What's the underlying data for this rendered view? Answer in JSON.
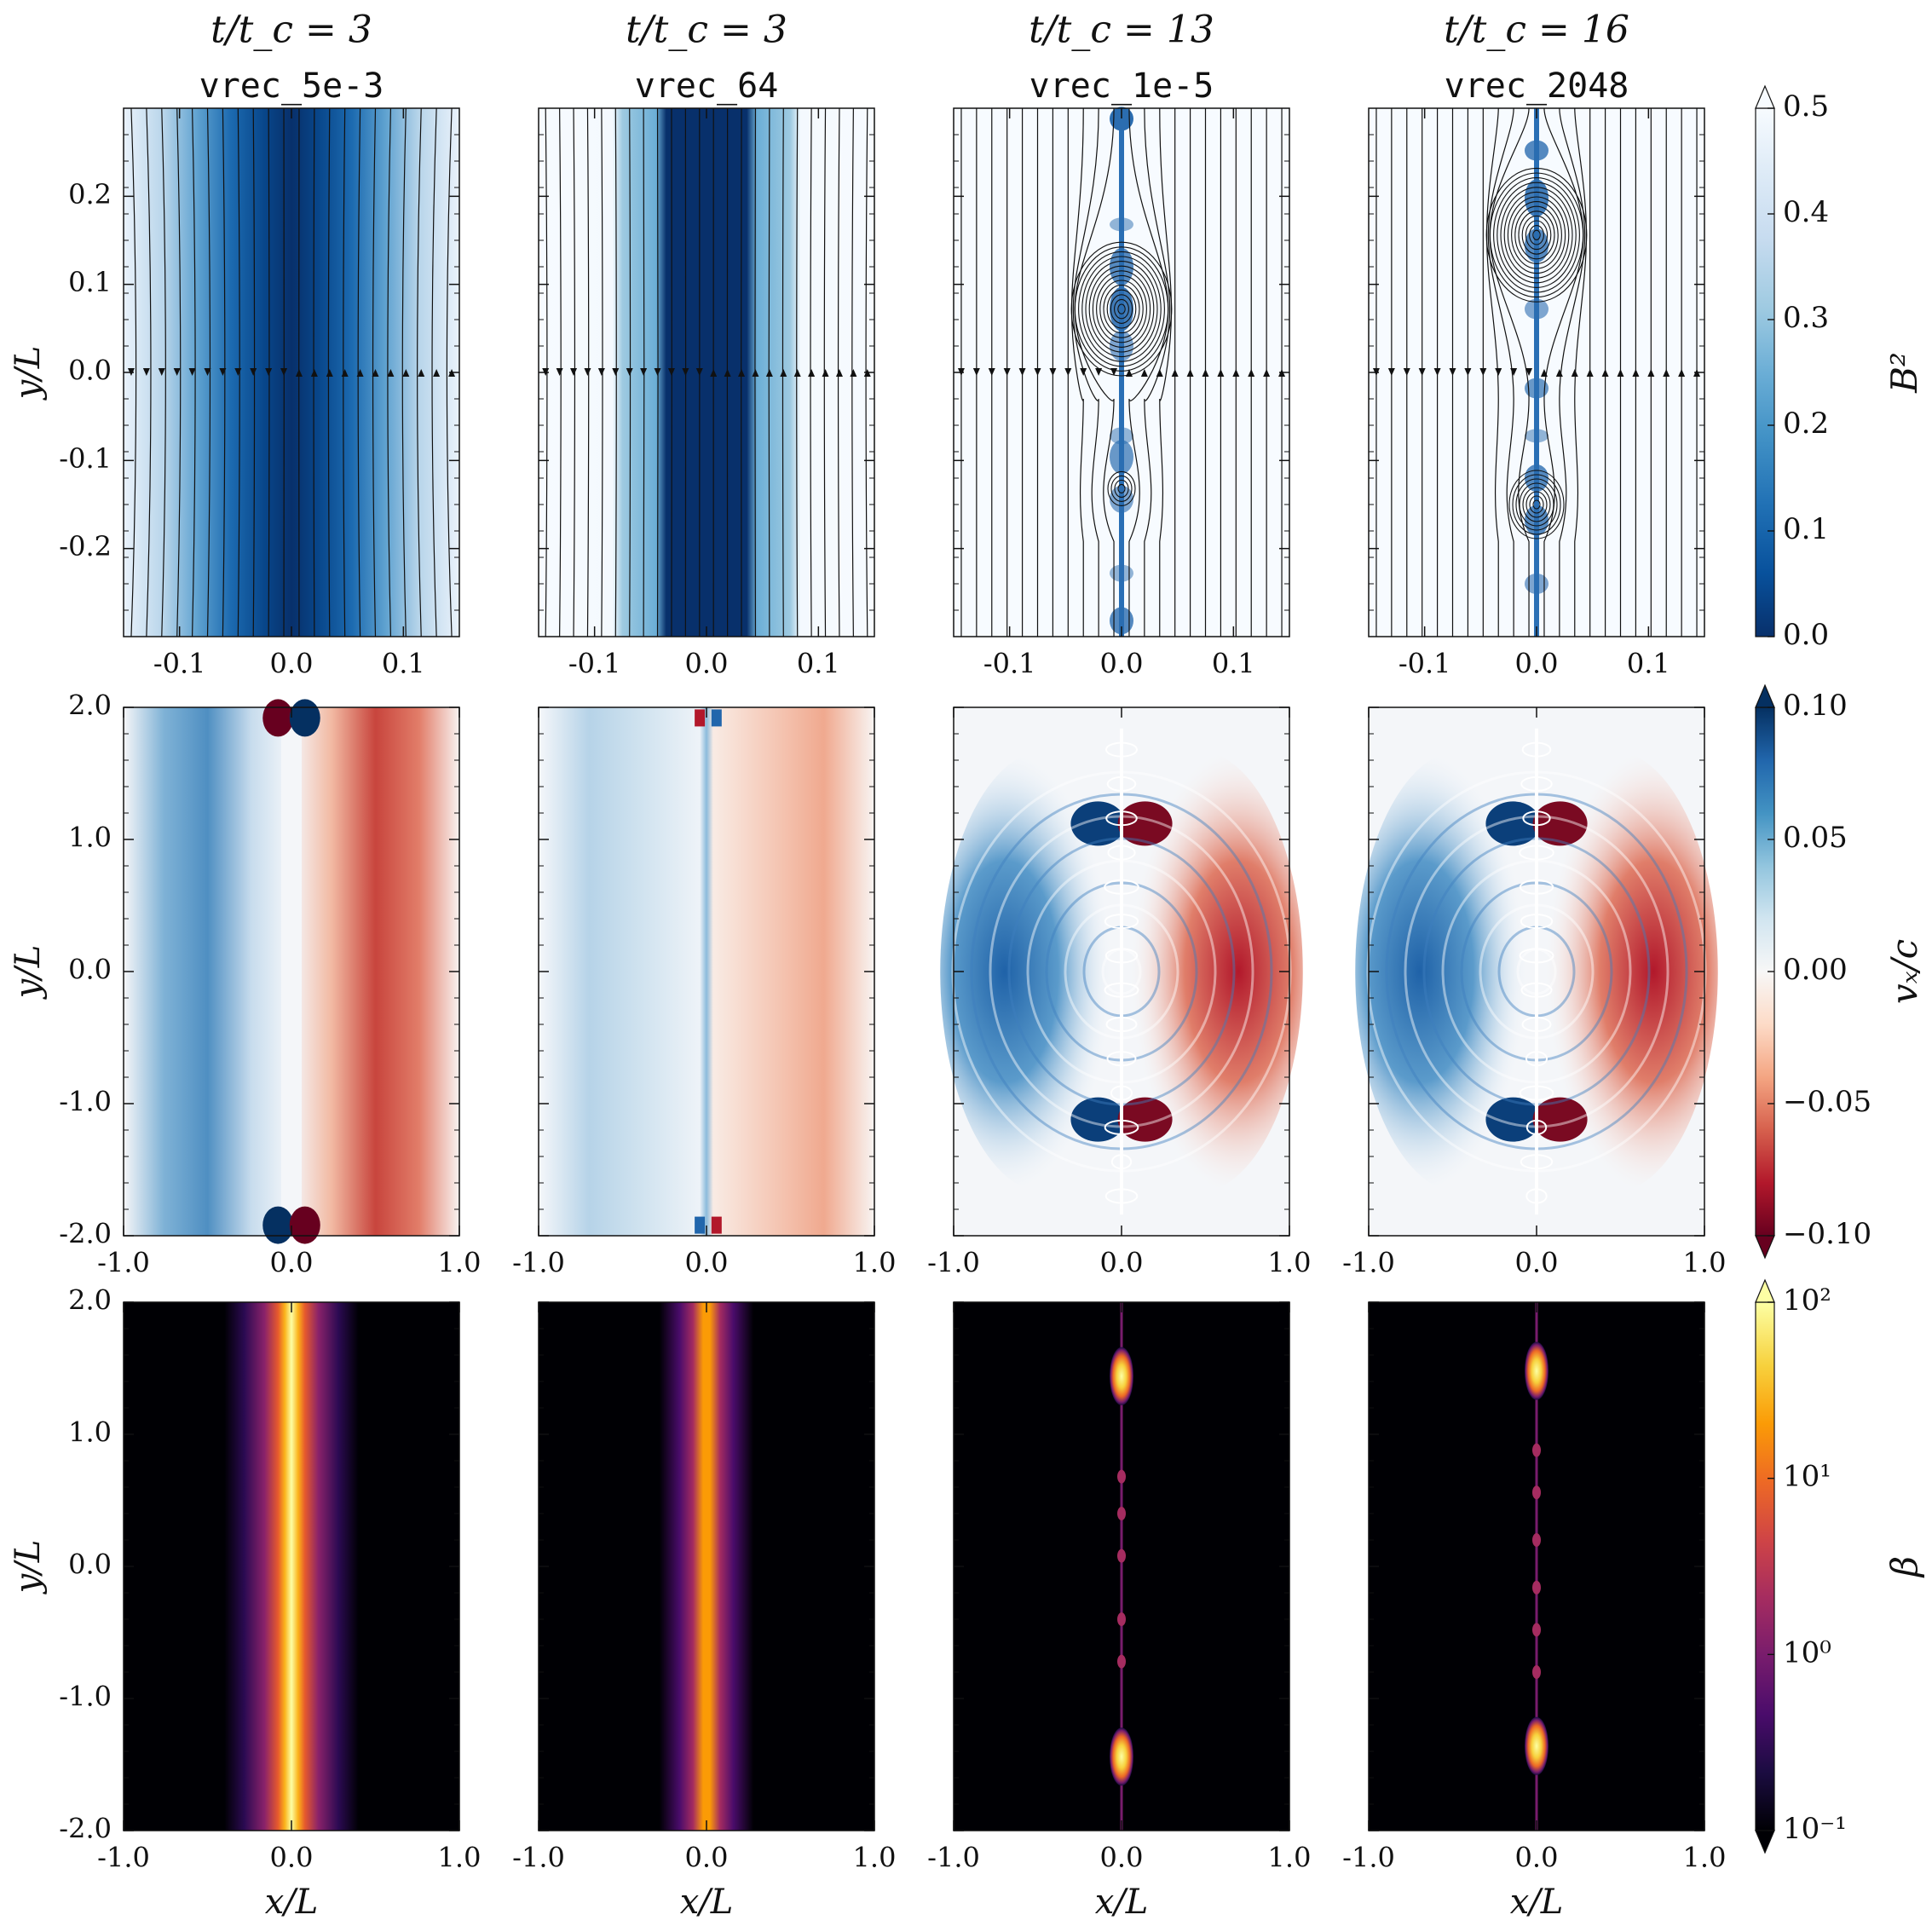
{
  "chart_data": {
    "type": "heatmap",
    "columns": [
      {
        "time_label": "t/t_c = 3",
        "run": "vrec_5e-3"
      },
      {
        "time_label": "t/t_c = 3",
        "run": "vrec_64"
      },
      {
        "time_label": "t/t_c = 13",
        "run": "vrec_1e-5"
      },
      {
        "time_label": "t/t_c = 16",
        "run": "vrec_2048"
      }
    ],
    "rows": [
      {
        "quantity": "B^2",
        "colormap": "Blues_r",
        "ylabel": "y/L",
        "xlim": [
          -0.15,
          0.15
        ],
        "ylim": [
          -0.3,
          0.3
        ],
        "xticks": [
          "-0.1",
          "0.0",
          "0.1"
        ],
        "yticks": [
          "-0.2",
          "-0.1",
          "0.0",
          "0.1",
          "0.2"
        ],
        "colorbar": {
          "label": "B²",
          "range": [
            0.0,
            0.5
          ],
          "ticks": [
            "0.0",
            "0.1",
            "0.2",
            "0.3",
            "0.4",
            "0.5"
          ],
          "extend": "max"
        }
      },
      {
        "quantity": "v_x/c",
        "colormap": "RdBu",
        "ylabel": "y/L",
        "xlim": [
          -1.0,
          1.0
        ],
        "ylim": [
          -2.0,
          2.0
        ],
        "xticks": [
          "-1.0",
          "0.0",
          "1.0"
        ],
        "yticks": [
          "-2.0",
          "-1.0",
          "0.0",
          "1.0",
          "2.0"
        ],
        "colorbar": {
          "label": "vₓ/c",
          "range": [
            -0.1,
            0.1
          ],
          "ticks": [
            "−0.10",
            "−0.05",
            "0.00",
            "0.05",
            "0.10"
          ],
          "extend": "both"
        }
      },
      {
        "quantity": "beta",
        "colormap": "inferno",
        "ylabel": "y/L",
        "xlabel": "x/L",
        "xlim": [
          -1.0,
          1.0
        ],
        "ylim": [
          -2.0,
          2.0
        ],
        "xticks": [
          "-1.0",
          "0.0",
          "1.0"
        ],
        "yticks": [
          "-2.0",
          "-1.0",
          "0.0",
          "1.0",
          "2.0"
        ],
        "colorbar": {
          "label": "β",
          "scale": "log",
          "range": [
            0.1,
            100
          ],
          "ticks": [
            "10⁻¹",
            "10⁰",
            "10¹",
            "10²"
          ],
          "extend": "both"
        }
      }
    ]
  },
  "colors": {
    "blues": [
      "#08306b",
      "#08519c",
      "#2171b5",
      "#4292c6",
      "#6baed6",
      "#9ecae1",
      "#c6dbef",
      "#deebf7",
      "#f7fbff"
    ],
    "rdbu": [
      "#67001f",
      "#b2182b",
      "#d6604d",
      "#f4a582",
      "#fddbc7",
      "#f7f7f7",
      "#d1e5f0",
      "#92c5de",
      "#4393c3",
      "#2166ac",
      "#053061"
    ],
    "inferno": [
      "#000004",
      "#1b0c41",
      "#4a0c6b",
      "#781c6d",
      "#a52c60",
      "#cf4446",
      "#ed6925",
      "#fb9b06",
      "#f7d13d",
      "#fcffa4"
    ]
  }
}
